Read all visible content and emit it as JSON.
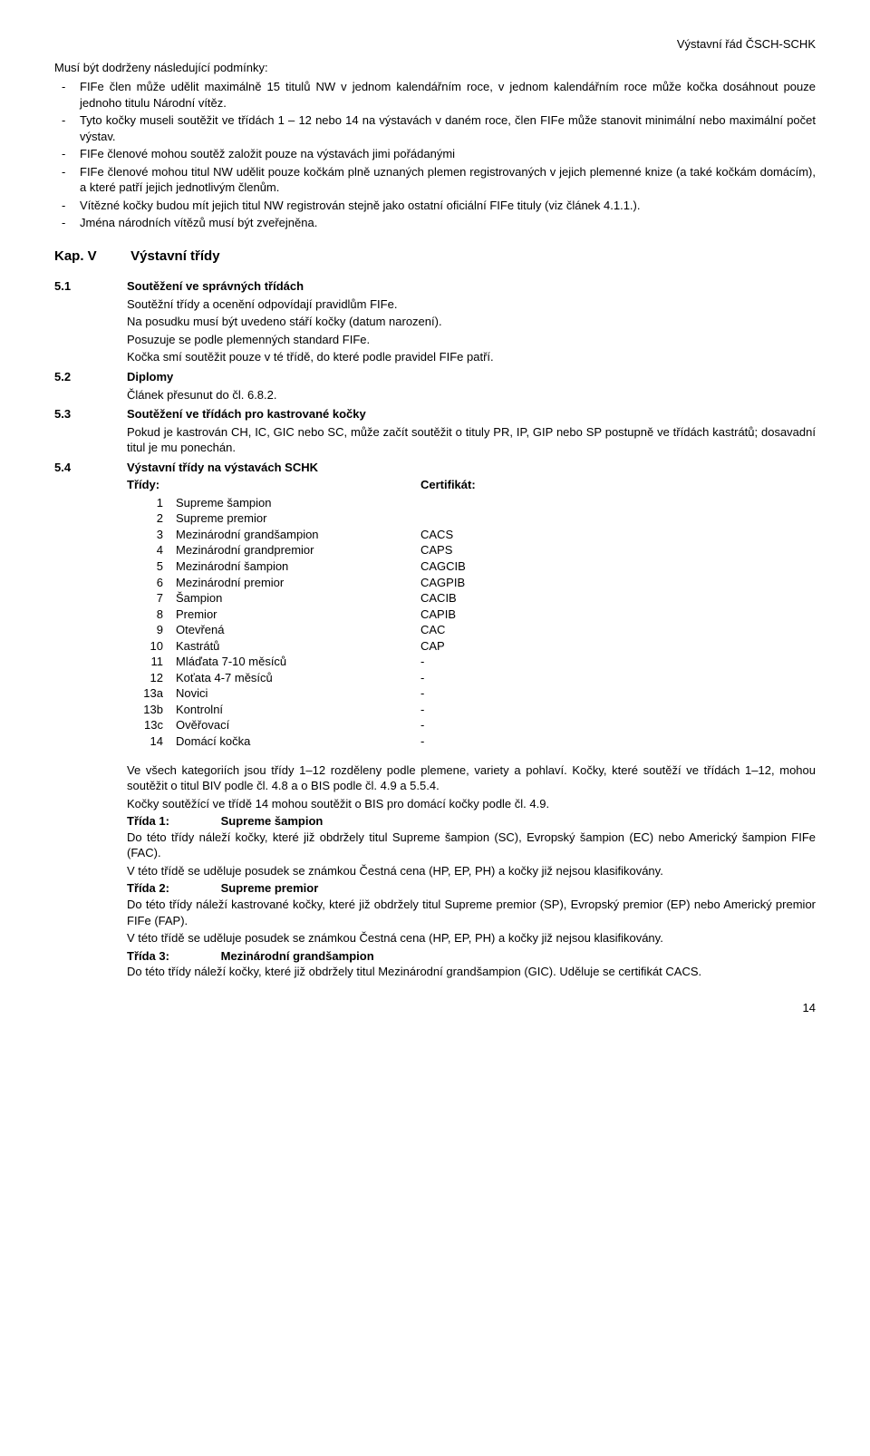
{
  "header": {
    "right": "Výstavní řád ČSCH-SCHK"
  },
  "intro": {
    "lead": "Musí být dodrženy následující podmínky:",
    "bullets": [
      "FIFe člen může udělit maximálně 15 titulů NW v jednom kalendářním roce, v jednom kalendářním roce může kočka dosáhnout pouze jednoho titulu Národní vítěz.",
      "Tyto kočky museli soutěžit ve třídách 1 – 12 nebo 14 na výstavách v daném roce, člen FIFe může stanovit minimální nebo maximální počet výstav.",
      "FIFe členové mohou soutěž založit pouze na výstavách jimi pořádanými",
      "FIFe členové mohou titul NW udělit pouze kočkám plně uznaných plemen registrovaných v jejich plemenné knize (a také kočkám domácím), a které patří jejich jednotlivým členům.",
      "Vítězné kočky budou mít jejich titul NW registrován stejně jako ostatní oficiální FIFe tituly (viz článek 4.1.1.).",
      "Jména národních vítězů musí být zveřejněna."
    ]
  },
  "kap": {
    "label": "Kap. V",
    "title": "Výstavní třídy"
  },
  "s51": {
    "num": "5.1",
    "title": "Soutěžení ve správných třídách",
    "lines": [
      "Soutěžní třídy a ocenění odpovídají pravidlům FIFe.",
      "Na posudku musí být uvedeno stáří kočky (datum narození).",
      "Posuzuje se podle plemenných standard FIFe.",
      "Kočka smí soutěžit pouze v té třídě, do které podle pravidel FIFe patří."
    ]
  },
  "s52": {
    "num": "5.2",
    "title": "Diplomy",
    "lines": [
      "Článek přesunut do čl. 6.8.2."
    ]
  },
  "s53": {
    "num": "5.3",
    "title": "Soutěžení ve třídách pro kastrované kočky",
    "lines": [
      "Pokud je kastrován CH, IC, GIC nebo SC, může začít soutěžit o tituly PR, IP, GIP nebo SP postupně ve třídách kastrátů; dosavadní titul je mu ponechán."
    ]
  },
  "s54": {
    "num": "5.4",
    "title": "Výstavní třídy na výstavách SCHK",
    "tridy_label": "Třídy:",
    "cert_label": "Certifikát:",
    "rows": [
      {
        "n": "1",
        "name": "Supreme šampion",
        "cert": ""
      },
      {
        "n": "2",
        "name": "Supreme premior",
        "cert": ""
      },
      {
        "n": "3",
        "name": "Mezinárodní grandšampion",
        "cert": "CACS"
      },
      {
        "n": "4",
        "name": "Mezinárodní grandpremior",
        "cert": "CAPS"
      },
      {
        "n": "5",
        "name": "Mezinárodní šampion",
        "cert": "CAGCIB"
      },
      {
        "n": "6",
        "name": "Mezinárodní premior",
        "cert": "CAGPIB"
      },
      {
        "n": "7",
        "name": "Šampion",
        "cert": "CACIB"
      },
      {
        "n": "8",
        "name": "Premior",
        "cert": "CAPIB"
      },
      {
        "n": "9",
        "name": "Otevřená",
        "cert": "CAC"
      },
      {
        "n": "10",
        "name": "Kastrátů",
        "cert": "CAP"
      },
      {
        "n": "11",
        "name": "Mláďata 7-10 měsíců",
        "cert": "-"
      },
      {
        "n": "12",
        "name": "Koťata 4-7 měsíců",
        "cert": "-"
      },
      {
        "n": "13a",
        "name": "Novici",
        "cert": "-"
      },
      {
        "n": "13b",
        "name": "Kontrolní",
        "cert": "-"
      },
      {
        "n": "13c",
        "name": "Ověřovací",
        "cert": "-"
      },
      {
        "n": "14",
        "name": "Domácí kočka",
        "cert": "-"
      }
    ],
    "after": [
      "Ve všech kategoriích jsou třídy 1–12 rozděleny podle plemene, variety a pohlaví. Kočky, které soutěží ve třídách 1–12, mohou soutěžit o titul BIV podle čl. 4.8 a o BIS podle čl. 4.9 a 5.5.4.",
      "Kočky soutěžící ve třídě 14 mohou soutěžit o BIS pro domácí kočky podle čl. 4.9."
    ],
    "tridy": [
      {
        "label": "Třída 1:",
        "title": "Supreme šampion",
        "body": [
          "Do této třídy náleží kočky, které již obdržely titul Supreme šampion (SC), Evropský šampion (EC) nebo Americký šampion FIFe (FAC).",
          "V této třídě se uděluje posudek se známkou Čestná cena (HP, EP, PH) a kočky již nejsou klasifikovány."
        ]
      },
      {
        "label": "Třída 2:",
        "title": "Supreme premior",
        "body": [
          "Do této třídy náleží kastrované kočky, které již obdržely titul Supreme premior (SP), Evropský premior (EP) nebo Americký premior FIFe (FAP).",
          "V této třídě se uděluje posudek se známkou Čestná cena (HP, EP, PH) a kočky již nejsou klasifikovány."
        ]
      },
      {
        "label": "Třída 3:",
        "title": "Mezinárodní grandšampion",
        "body": [
          "Do této třídy náleží kočky, které již obdržely titul Mezinárodní grandšampion (GIC). Uděluje se certifikát CACS."
        ]
      }
    ]
  },
  "page_number": "14"
}
